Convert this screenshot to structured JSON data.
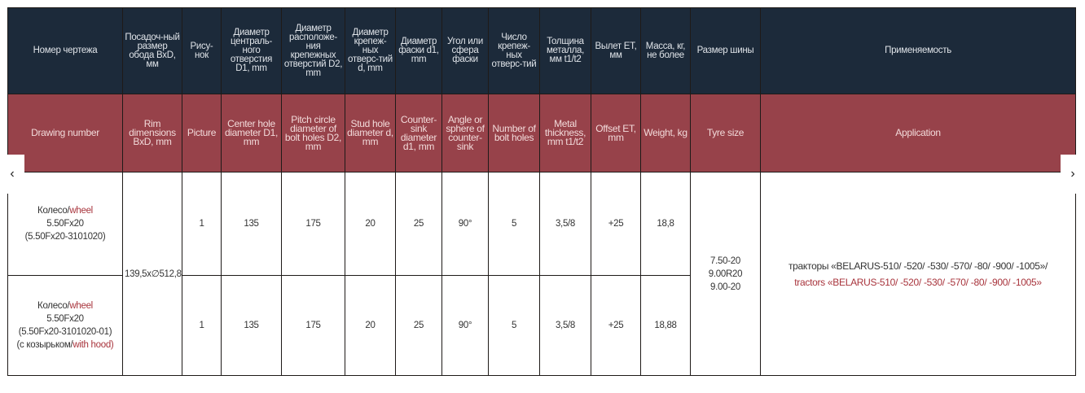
{
  "headers_ru": [
    "Номер чертежа",
    "Посадоч-ный размер обода BxD, мм",
    "Рису-нок",
    "Диаметр централь-ного отверстия D1, mm",
    "Диаметр расположе-ния крепежных отверстий D2, mm",
    "Диаметр крепеж-ных отверс-тий d, mm",
    "Диаметр фаски d1, mm",
    "Угол или сфера фаски",
    "Число крепеж-ных отверс-тий",
    "Толщина металла, мм t1/t2",
    "Вылет ET, мм",
    "Масса, кг, не более",
    "Размер шины",
    "Применяемость"
  ],
  "headers_en": [
    "Drawing number",
    "Rim dimensions BxD, mm",
    "Picture",
    "Center hole diameter D1, mm",
    "Pitch circle diameter of bolt holes D2, mm",
    "Stud hole diameter d, mm",
    "Counter-sink diameter d1, mm",
    "Angle or sphere of counter-sink",
    "Number of bolt holes",
    "Metal thickness, mm t1/t2",
    "Offset ET, mm",
    "Weight, kg",
    "Tyre size",
    "Application"
  ],
  "rows": [
    {
      "drawing_ru": "Колесо/",
      "drawing_en": "wheel",
      "drawing_size": "5.50Fx20",
      "drawing_code": "(5.50Fx20-3101020)",
      "hood_ru": "",
      "hood_en": "",
      "picture": "1",
      "d1": "135",
      "d2": "175",
      "d": "20",
      "dfas": "25",
      "angle": "90°",
      "holes": "5",
      "thick": "3,5/8",
      "et": "+25",
      "weight": "18,8"
    },
    {
      "drawing_ru": "Колесо/",
      "drawing_en": "wheel",
      "drawing_size": "5.50Fx20",
      "drawing_code": "(5.50Fx20-3101020-01)",
      "hood_ru": "(с козырьком/",
      "hood_en": "with hood)",
      "picture": "1",
      "d1": "135",
      "d2": "175",
      "d": "20",
      "dfas": "25",
      "angle": "90°",
      "holes": "5",
      "thick": "3,5/8",
      "et": "+25",
      "weight": "18,88"
    }
  ],
  "rim": "139,5x∅512,8",
  "tyres": [
    "7.50-20",
    "9.00R20",
    "9.00-20"
  ],
  "application_ru": "тракторы «BELARUS-510/ -520/ -530/ -570/ -80/ -900/ -1005»/",
  "application_en": "tractors «BELARUS-510/ -520/ -530/ -570/ -80/ -900/ -1005»",
  "nav": {
    "prev": "‹",
    "next": "›"
  }
}
